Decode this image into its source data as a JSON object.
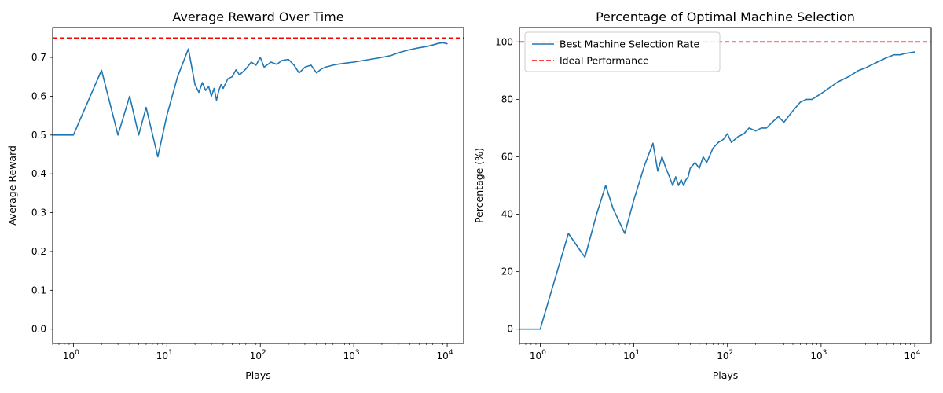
{
  "chart_data": [
    {
      "type": "line",
      "title": "Average Reward Over Time",
      "xlabel": "Plays",
      "ylabel": "Average Reward",
      "xscale": "log",
      "xlim": [
        0.6,
        15000
      ],
      "ylim": [
        -0.037,
        0.777
      ],
      "xticks": [
        1,
        10,
        100,
        1000,
        10000
      ],
      "xtick_labels": [
        [
          "10",
          "0"
        ],
        [
          "10",
          "1"
        ],
        [
          "10",
          "2"
        ],
        [
          "10",
          "3"
        ],
        [
          "10",
          "4"
        ]
      ],
      "yticks": [
        0.0,
        0.1,
        0.2,
        0.3,
        0.4,
        0.5,
        0.6,
        0.7
      ],
      "ytick_labels": [
        "0.0",
        "0.1",
        "0.2",
        "0.3",
        "0.4",
        "0.5",
        "0.6",
        "0.7"
      ],
      "grid": false,
      "legend": null,
      "colors": {
        "series": "#1f77b4",
        "reference": "#ff0000"
      },
      "reference_line": {
        "y": 0.75,
        "style": "dashed"
      },
      "series": [
        {
          "x": [
            0.6,
            1,
            2,
            3,
            4,
            5,
            6,
            8,
            10,
            13,
            17,
            20,
            22,
            24,
            26,
            28,
            30,
            32,
            34,
            36,
            38,
            40,
            45,
            50,
            55,
            60,
            70,
            80,
            90,
            100,
            110,
            130,
            150,
            170,
            200,
            230,
            260,
            300,
            350,
            400,
            450,
            500,
            600,
            700,
            800,
            1000,
            1500,
            2000,
            2500,
            3000,
            4000,
            5000,
            6000,
            7000,
            8000,
            9000,
            10000
          ],
          "y": [
            0.5,
            0.5,
            0.667,
            0.5,
            0.6,
            0.5,
            0.571,
            0.444,
            0.55,
            0.65,
            0.722,
            0.63,
            0.61,
            0.635,
            0.615,
            0.625,
            0.6,
            0.62,
            0.59,
            0.615,
            0.63,
            0.62,
            0.645,
            0.65,
            0.668,
            0.655,
            0.67,
            0.688,
            0.68,
            0.7,
            0.675,
            0.688,
            0.682,
            0.692,
            0.695,
            0.68,
            0.66,
            0.675,
            0.68,
            0.66,
            0.67,
            0.675,
            0.68,
            0.683,
            0.685,
            0.688,
            0.695,
            0.7,
            0.705,
            0.712,
            0.72,
            0.725,
            0.728,
            0.732,
            0.736,
            0.738,
            0.735
          ]
        }
      ]
    },
    {
      "type": "line",
      "title": "Percentage of Optimal Machine Selection",
      "xlabel": "Plays",
      "ylabel": "Percentage (%)",
      "xscale": "log",
      "xlim": [
        0.6,
        15000
      ],
      "ylim": [
        -5,
        105
      ],
      "xticks": [
        1,
        10,
        100,
        1000,
        10000
      ],
      "xtick_labels": [
        [
          "10",
          "0"
        ],
        [
          "10",
          "1"
        ],
        [
          "10",
          "2"
        ],
        [
          "10",
          "3"
        ],
        [
          "10",
          "4"
        ]
      ],
      "yticks": [
        0,
        20,
        40,
        60,
        80,
        100
      ],
      "ytick_labels": [
        "0",
        "20",
        "40",
        "60",
        "80",
        "100"
      ],
      "grid": false,
      "legend": {
        "position": "top-left",
        "entries": [
          "Best Machine Selection Rate",
          "Ideal Performance"
        ]
      },
      "colors": {
        "series": "#1f77b4",
        "reference": "#ff0000"
      },
      "reference_line": {
        "y": 100,
        "style": "dashed",
        "name": "Ideal Performance"
      },
      "series": [
        {
          "name": "Best Machine Selection Rate",
          "x": [
            0.6,
            1,
            2,
            3,
            4,
            5,
            6,
            8,
            10,
            13,
            16,
            18,
            20,
            22,
            24,
            26,
            28,
            30,
            32,
            34,
            36,
            38,
            40,
            45,
            50,
            55,
            60,
            70,
            80,
            90,
            100,
            110,
            130,
            150,
            170,
            200,
            230,
            260,
            300,
            350,
            400,
            500,
            600,
            700,
            800,
            1000,
            1500,
            2000,
            2500,
            3000,
            4000,
            5000,
            6000,
            7000,
            8000,
            10000
          ],
          "y": [
            0,
            0,
            33.3,
            25,
            40,
            50,
            42,
            33.3,
            45,
            57,
            64.7,
            55,
            60,
            56,
            53,
            50,
            53,
            50,
            52,
            50,
            52,
            53,
            56,
            58,
            56,
            60,
            58,
            63,
            65,
            66,
            68,
            65,
            67,
            68,
            70,
            69,
            70,
            70,
            72,
            74,
            72,
            76,
            79,
            80,
            80,
            82,
            86,
            88,
            90,
            91,
            93,
            94.5,
            95.5,
            95.5,
            96,
            96.5
          ]
        }
      ]
    }
  ]
}
